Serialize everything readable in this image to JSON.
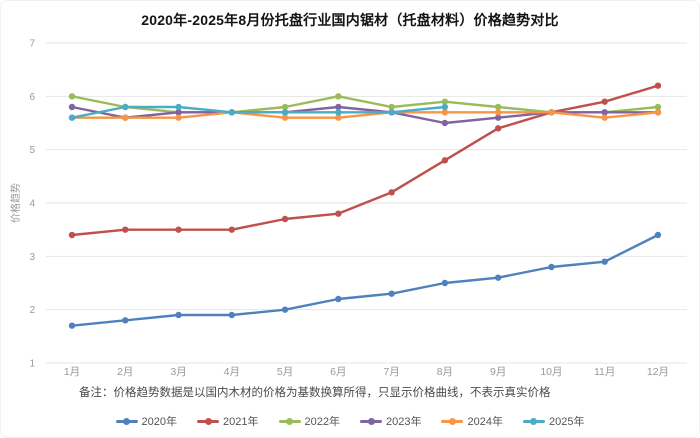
{
  "title": "2020年-2025年8月份托盘行业国内锯材（托盘材料）价格趋势对比",
  "note": "备注：价格趋势数据是以国内木材的价格为基数换算所得，只显示价格曲线，不表示真实价格",
  "chart_data": {
    "type": "line",
    "title": "2020年-2025年8月份托盘行业国内锯材（托盘材料）价格趋势对比",
    "xlabel": "",
    "ylabel": "价格趋势",
    "ylim": [
      1,
      7
    ],
    "y_ticks": [
      1,
      2,
      3,
      4,
      5,
      6,
      7
    ],
    "grid": "horizontal",
    "legend_position": "bottom",
    "categories": [
      "1月",
      "2月",
      "3月",
      "4月",
      "5月",
      "6月",
      "7月",
      "8月",
      "9月",
      "10月",
      "11月",
      "12月"
    ],
    "series": [
      {
        "name": "2020年",
        "color": "#4F81BD",
        "values": [
          1.7,
          1.8,
          1.9,
          1.9,
          2.0,
          2.2,
          2.3,
          2.5,
          2.6,
          2.8,
          2.9,
          3.4
        ]
      },
      {
        "name": "2021年",
        "color": "#C0504D",
        "values": [
          3.4,
          3.5,
          3.5,
          3.5,
          3.7,
          3.8,
          4.2,
          4.8,
          5.4,
          5.7,
          5.9,
          6.2
        ]
      },
      {
        "name": "2022年",
        "color": "#9BBB59",
        "values": [
          6.0,
          5.8,
          5.7,
          5.7,
          5.8,
          6.0,
          5.8,
          5.9,
          5.8,
          5.7,
          5.7,
          5.8
        ]
      },
      {
        "name": "2023年",
        "color": "#8064A2",
        "values": [
          5.8,
          5.6,
          5.7,
          5.7,
          5.7,
          5.8,
          5.7,
          5.5,
          5.6,
          5.7,
          5.7,
          5.7
        ]
      },
      {
        "name": "2024年",
        "color": "#F79646",
        "values": [
          5.6,
          5.6,
          5.6,
          5.7,
          5.6,
          5.6,
          5.7,
          5.7,
          5.7,
          5.7,
          5.6,
          5.7
        ]
      },
      {
        "name": "2025年",
        "color": "#4BACC6",
        "values": [
          5.6,
          5.8,
          5.8,
          5.7,
          5.7,
          5.7,
          5.7,
          5.8,
          null,
          null,
          null,
          null
        ]
      }
    ],
    "axis_label_color": "#999999",
    "gridline_color": "#e6e6e6"
  }
}
